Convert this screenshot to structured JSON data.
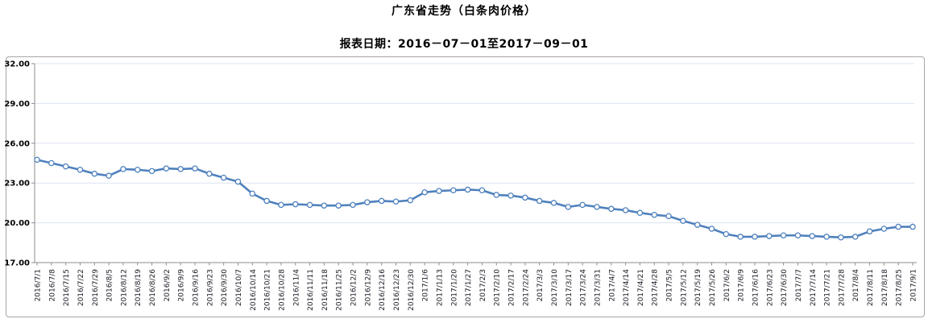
{
  "header": {
    "title": "广东省走势（白条肉价格）",
    "subtitle": "报表日期：2016－07－01至2017－09－01"
  },
  "chart_data": {
    "type": "line",
    "title": "广东省走势（白条肉价格）",
    "subtitle": "报表日期：2016－07－01至2017－09－01",
    "xlabel": "",
    "ylabel": "",
    "ylim": [
      17,
      32
    ],
    "yticks": [
      17,
      20,
      23,
      26,
      29,
      32
    ],
    "ytick_labels": [
      "17.00",
      "20.00",
      "23.00",
      "26.00",
      "29.00",
      "32.00"
    ],
    "grid": true,
    "legend": "none",
    "line_color": "#4F81BD",
    "marker": "circle-open",
    "marker_fill": "#ffffff",
    "grid_color": "#dce4f0",
    "axis_color": "#8c8c8c",
    "categories": [
      "2016/7/1",
      "2016/7/8",
      "2016/7/15",
      "2016/7/22",
      "2016/7/29",
      "2016/8/5",
      "2016/8/12",
      "2016/8/19",
      "2016/8/26",
      "2016/9/2",
      "2016/9/9",
      "2016/9/16",
      "2016/9/23",
      "2016/9/30",
      "2016/10/7",
      "2016/10/14",
      "2016/10/21",
      "2016/10/28",
      "2016/11/4",
      "2016/11/11",
      "2016/11/18",
      "2016/11/25",
      "2016/12/2",
      "2016/12/9",
      "2016/12/16",
      "2016/12/23",
      "2016/12/30",
      "2017/1/6",
      "2017/1/13",
      "2017/1/20",
      "2017/1/27",
      "2017/2/3",
      "2017/2/10",
      "2017/2/17",
      "2017/2/24",
      "2017/3/3",
      "2017/3/10",
      "2017/3/17",
      "2017/3/24",
      "2017/3/31",
      "2017/4/7",
      "2017/4/14",
      "2017/4/21",
      "2017/4/28",
      "2017/5/5",
      "2017/5/12",
      "2017/5/19",
      "2017/5/26",
      "2017/6/2",
      "2017/6/9",
      "2017/6/16",
      "2017/6/23",
      "2017/6/30",
      "2017/7/7",
      "2017/7/14",
      "2017/7/21",
      "2017/7/28",
      "2017/8/4",
      "2017/8/11",
      "2017/8/18",
      "2017/8/25",
      "2017/9/1"
    ],
    "values": [
      24.75,
      24.5,
      24.25,
      24.0,
      23.7,
      23.55,
      24.05,
      24.0,
      23.9,
      24.1,
      24.05,
      24.1,
      23.7,
      23.4,
      23.1,
      22.2,
      21.65,
      21.35,
      21.4,
      21.35,
      21.3,
      21.3,
      21.35,
      21.55,
      21.65,
      21.6,
      21.7,
      22.3,
      22.4,
      22.45,
      22.5,
      22.45,
      22.1,
      22.05,
      21.9,
      21.65,
      21.5,
      21.2,
      21.35,
      21.2,
      21.05,
      20.95,
      20.75,
      20.6,
      20.5,
      20.15,
      19.85,
      19.55,
      19.15,
      18.95,
      18.95,
      19.0,
      19.05,
      19.05,
      19.0,
      18.95,
      18.9,
      18.95,
      19.35,
      19.55,
      19.7,
      19.7
    ]
  }
}
